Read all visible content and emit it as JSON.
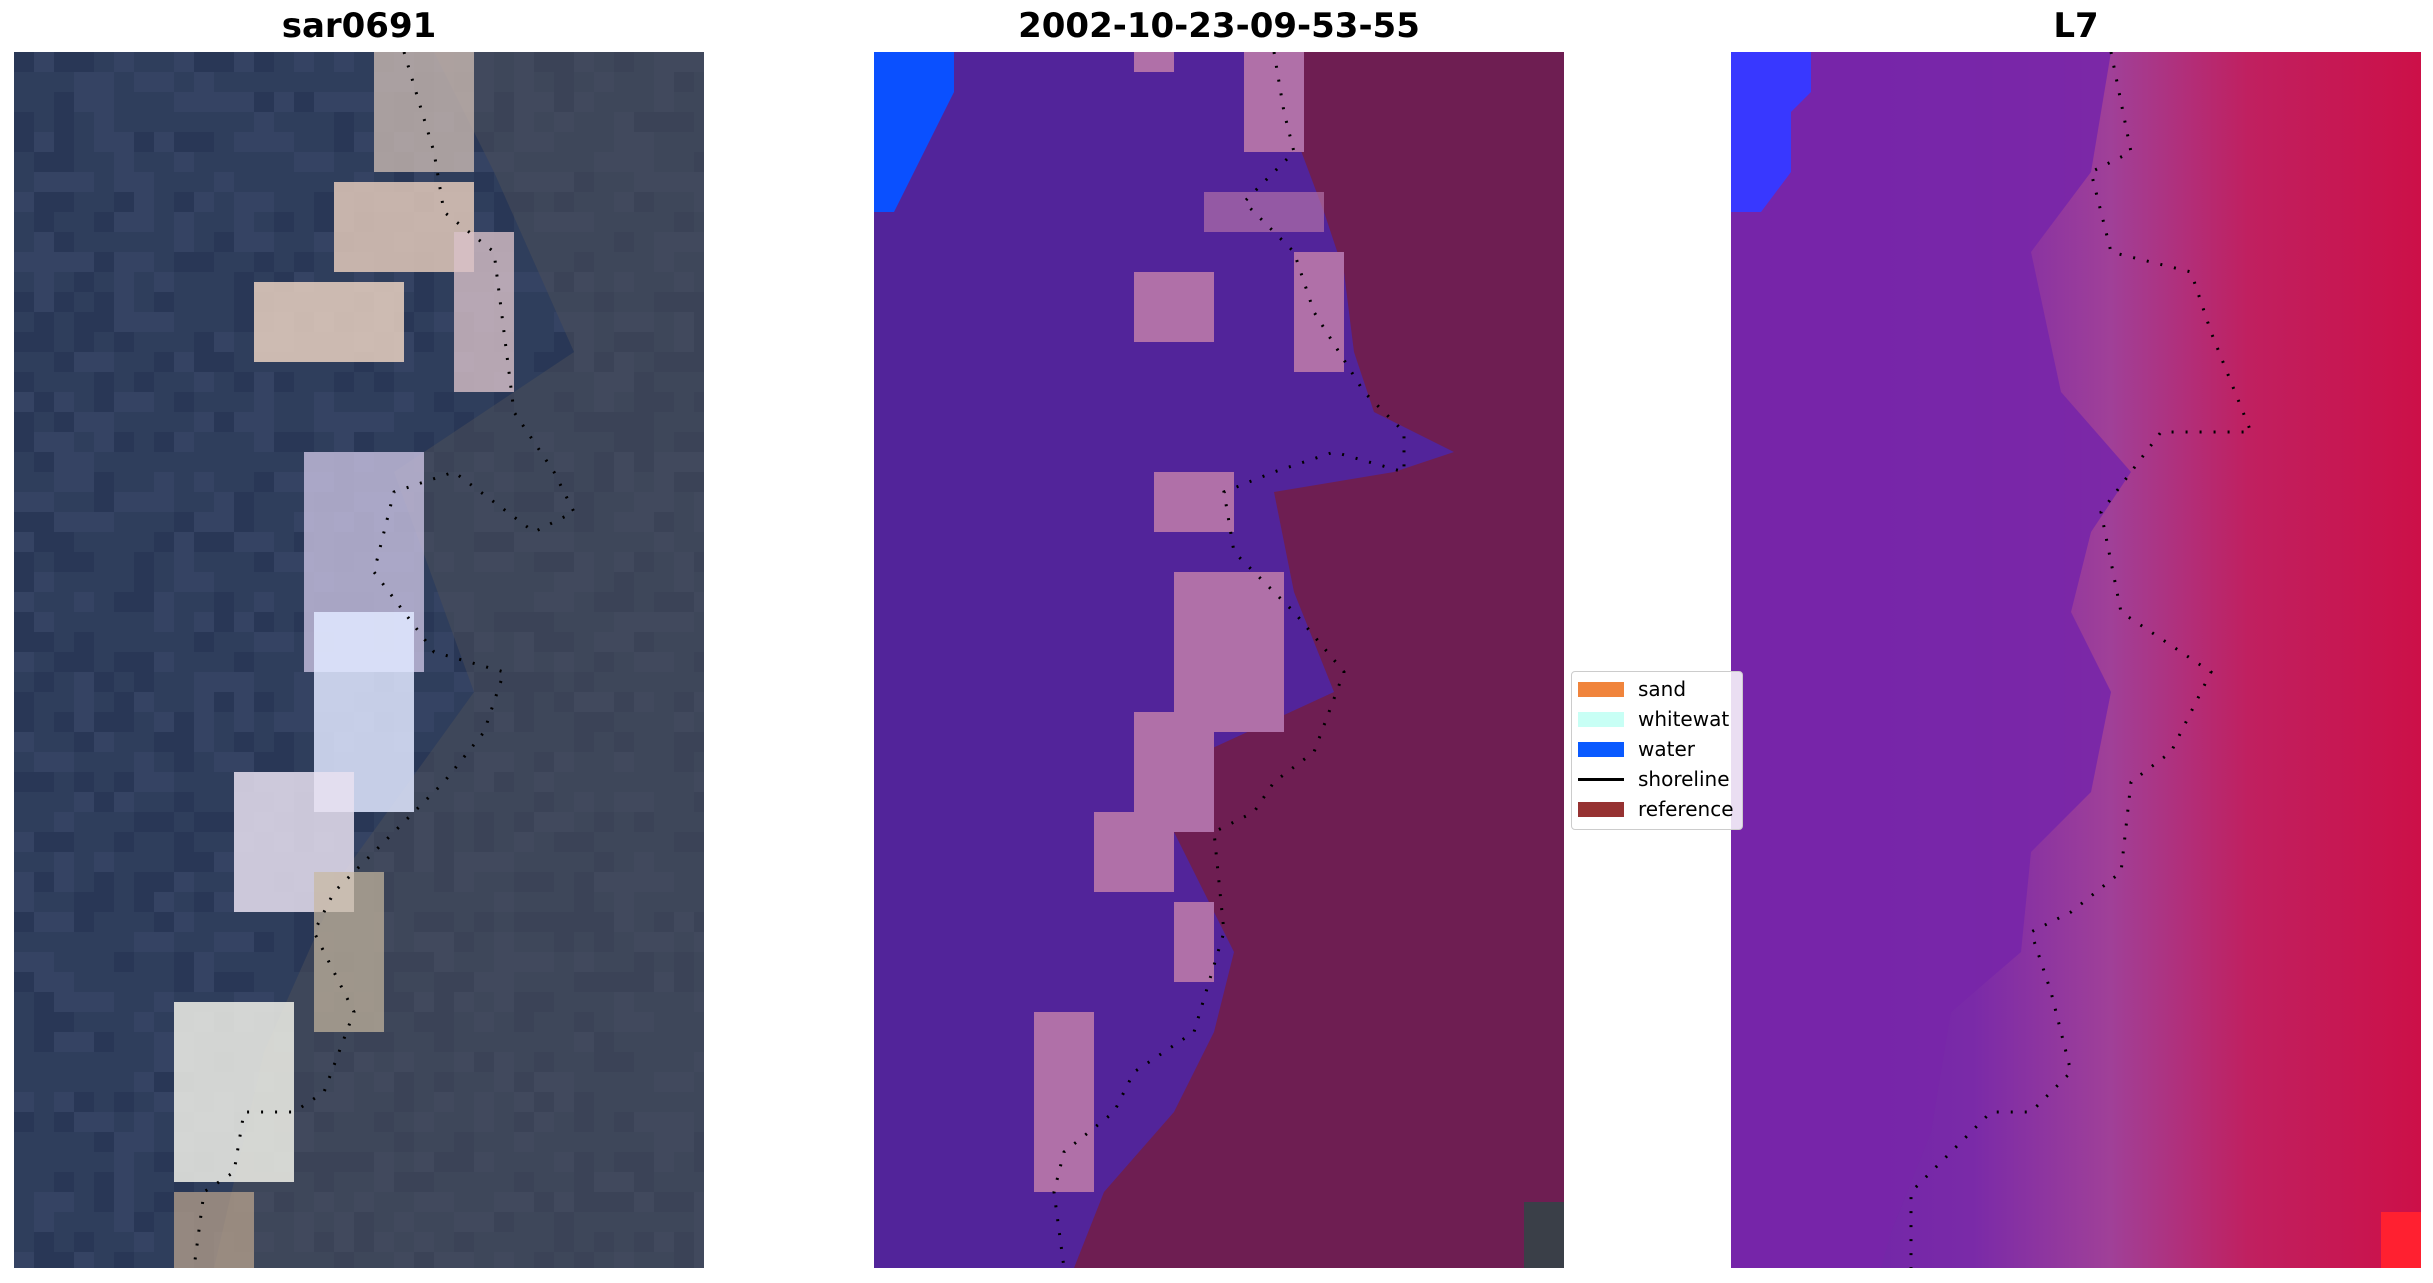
{
  "panels": [
    {
      "title": "sar0691"
    },
    {
      "title": "2002-10-23-09-53-55"
    },
    {
      "title": "L7"
    }
  ],
  "legend": {
    "items": [
      {
        "label": "sand",
        "color": "#f0843c",
        "kind": "patch"
      },
      {
        "label": "whitewat",
        "color": "#c8fff5",
        "kind": "patch"
      },
      {
        "label": "water",
        "color": "#0a5aff",
        "kind": "patch"
      },
      {
        "label": "shoreline",
        "color": "#000000",
        "kind": "line"
      },
      {
        "label": "reference",
        "color": "#963232",
        "kind": "patch"
      }
    ]
  },
  "colors": {
    "rgb_water": "#2f3e5c",
    "rgb_sand": "#e8d8c8",
    "class_water": "#52249a",
    "class_sand_overlay": "#b070a8",
    "class_reference": "#6e1e52",
    "class_blue_corner": "#0a50ff",
    "index_purple": "#7a2aa8",
    "index_red": "#c8104a",
    "index_blue": "#3838ff"
  }
}
